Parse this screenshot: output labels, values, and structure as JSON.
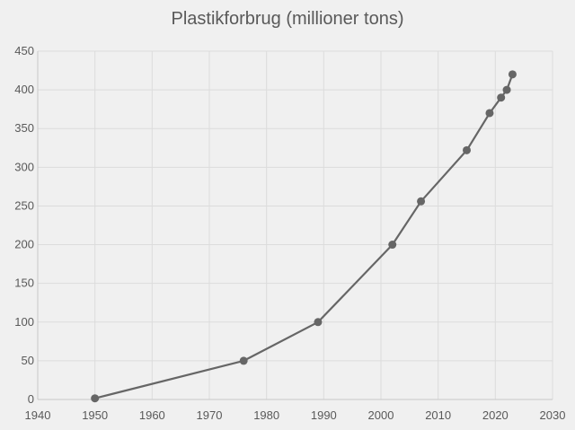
{
  "chart_data": {
    "type": "line",
    "title": "Plastikforbrug (millioner tons)",
    "xlabel": "",
    "ylabel": "",
    "xlim": [
      1940,
      2030
    ],
    "ylim": [
      0,
      450
    ],
    "x_ticks": [
      1940,
      1950,
      1960,
      1970,
      1980,
      1990,
      2000,
      2010,
      2020,
      2030
    ],
    "y_ticks": [
      0,
      50,
      100,
      150,
      200,
      250,
      300,
      350,
      400,
      450
    ],
    "grid": true,
    "legend": "none",
    "series": [
      {
        "x": [
          1950,
          1976,
          1989,
          2002,
          2007,
          2015,
          2019,
          2021,
          2022,
          2023
        ],
        "values": [
          1.5,
          50,
          100,
          200,
          256,
          322,
          370,
          390,
          400,
          420
        ]
      }
    ],
    "colors": {
      "background": "#f0f0f0",
      "grid": "#dcdcdc",
      "line": "#666666",
      "marker": "#666666",
      "text": "#595959"
    }
  }
}
